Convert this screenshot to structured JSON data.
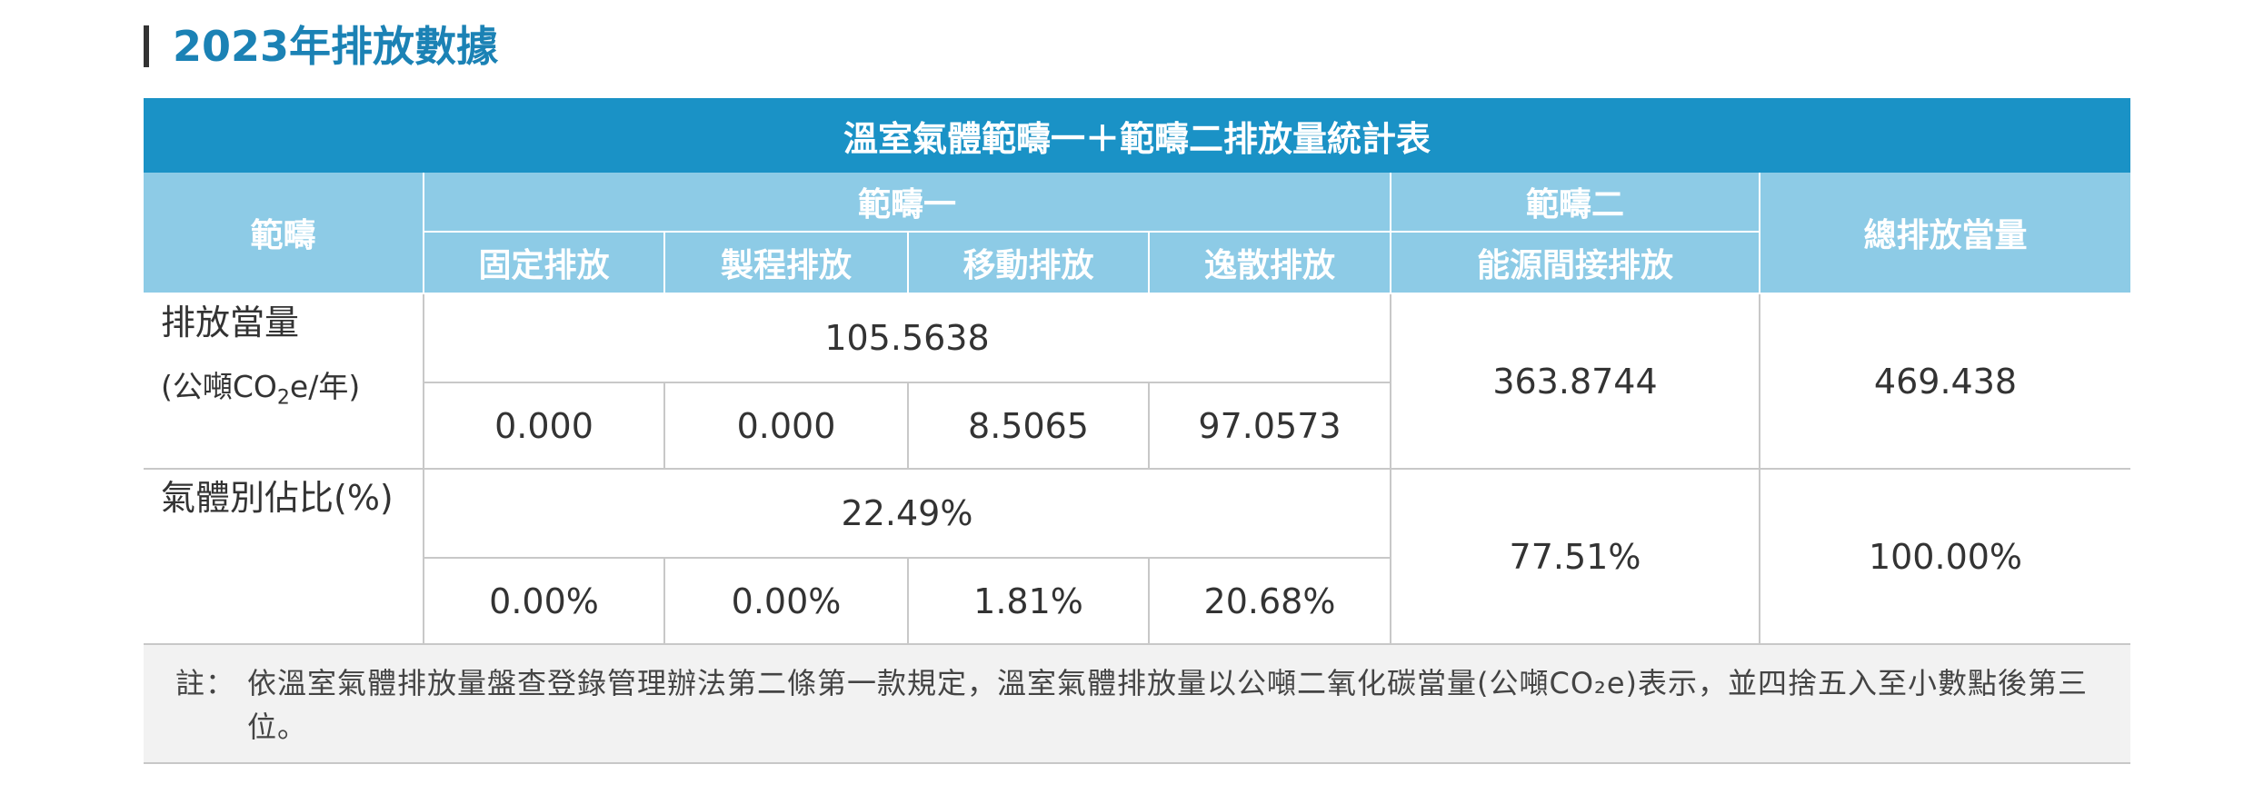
{
  "heading": "2023年排放數據",
  "table": {
    "title": "溫室氣體範疇一＋範疇二排放量統計表",
    "headers": {
      "scope": "範疇",
      "scope1": "範疇一",
      "scope2": "範疇二",
      "total": "總排放當量",
      "scope1_items": [
        "固定排放",
        "製程排放",
        "移動排放",
        "逸散排放"
      ],
      "scope2_items": [
        "能源間接排放"
      ]
    },
    "rows": [
      {
        "label": "排放當量",
        "unit": {
          "prefix": "(公噸CO",
          "sub": "2",
          "suffix": "e/年)"
        },
        "scope1_total": "105.5638",
        "scope1_items": [
          "0.000",
          "0.000",
          "8.5065",
          "97.0573"
        ],
        "scope2": "363.8744",
        "total": "469.438"
      },
      {
        "label": "氣體別佔比(%)",
        "scope1_total": "22.49%",
        "scope1_items": [
          "0.00%",
          "0.00%",
          "1.81%",
          "20.68%"
        ],
        "scope2": "77.51%",
        "total": "100.00%"
      }
    ]
  },
  "note": {
    "label": "註：",
    "text": "依溫室氣體排放量盤查登錄管理辦法第二條第一款規定，溫室氣體排放量以公噸二氧化碳當量(公噸CO₂e)表示，並四捨五入至小數點後第三位。"
  }
}
